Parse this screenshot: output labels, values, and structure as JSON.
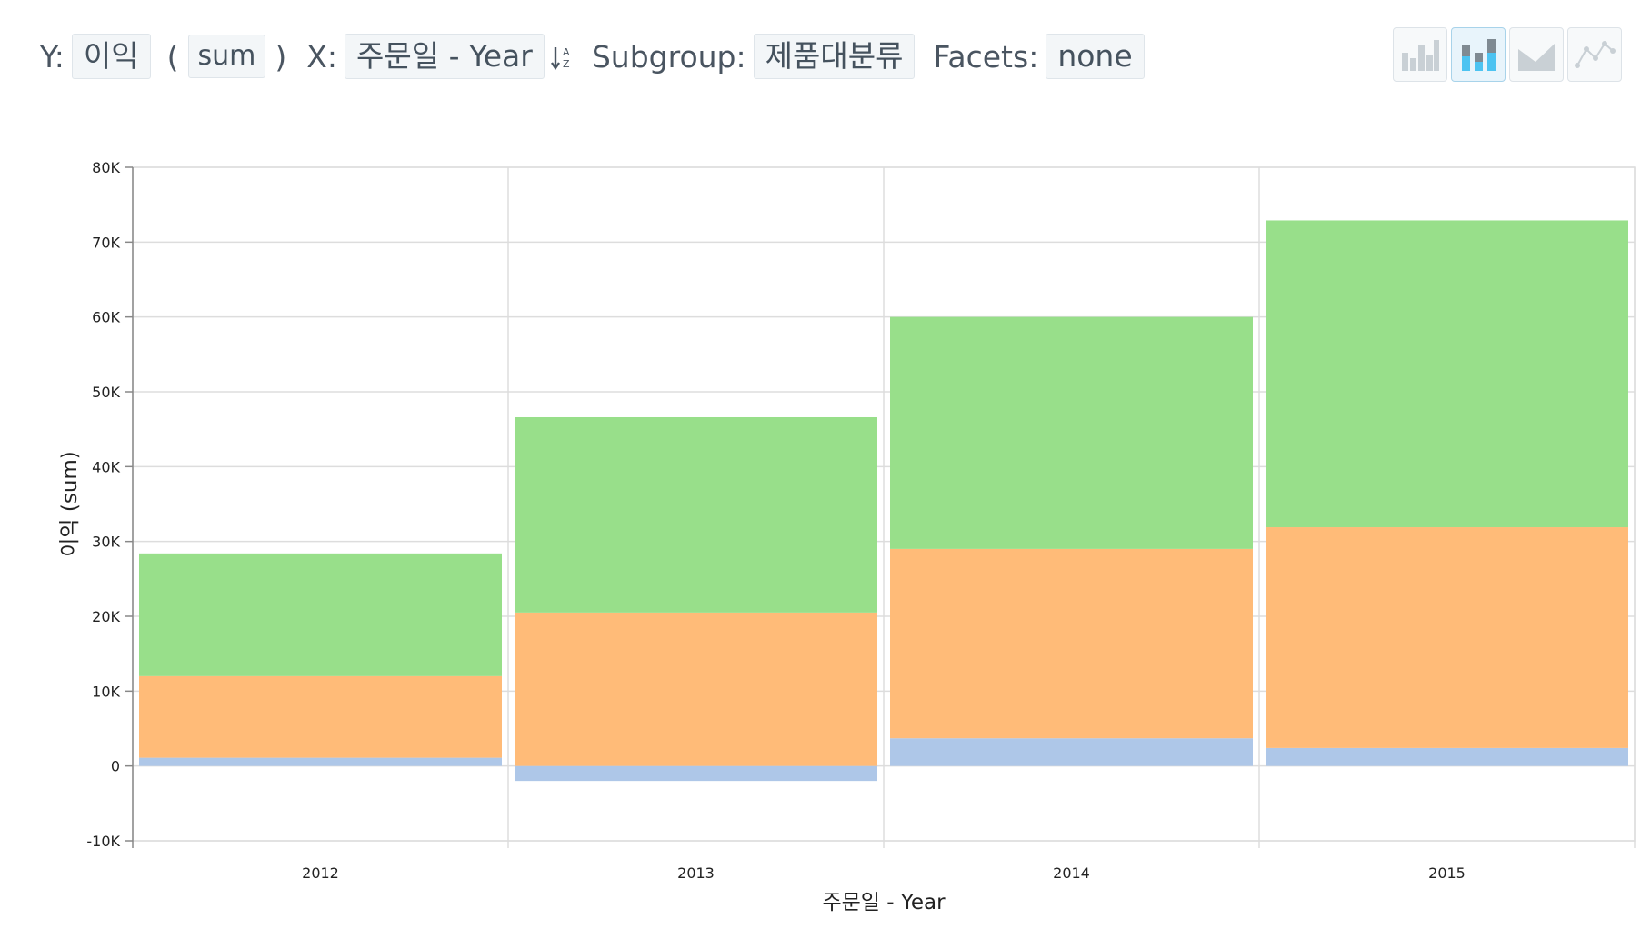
{
  "toolbar": {
    "y_label": "Y:",
    "y_value": "이익",
    "agg_open": "(",
    "agg_value": "sum",
    "agg_close": ")",
    "x_label": "X:",
    "x_value": "주문일 - Year",
    "sort_icon": "sort-alpha-icon",
    "subgroup_label": "Subgroup:",
    "subgroup_value": "제품대분류",
    "facets_label": "Facets:",
    "facets_value": "none"
  },
  "chart_types": [
    {
      "name": "bar-chart-icon",
      "active": false
    },
    {
      "name": "stacked-bar-chart-icon",
      "active": true
    },
    {
      "name": "area-chart-icon",
      "active": false
    },
    {
      "name": "line-chart-icon",
      "active": false
    }
  ],
  "colors": {
    "series_1": "#aec7e8",
    "series_2": "#ffbb78",
    "series_3": "#98df8a",
    "grid": "#dddddd"
  },
  "chart_data": {
    "type": "bar",
    "stacked": true,
    "categories": [
      "2012",
      "2013",
      "2014",
      "2015"
    ],
    "series": [
      {
        "values": [
          1100,
          -2000,
          3700,
          2400
        ]
      },
      {
        "values": [
          10900,
          20500,
          25300,
          29500
        ]
      },
      {
        "values": [
          16400,
          26100,
          31000,
          41000
        ]
      }
    ],
    "xlabel": "주문일 - Year",
    "ylabel": "이익 (sum)",
    "ylim": [
      -10000,
      80000
    ],
    "yticks": [
      -10000,
      0,
      10000,
      20000,
      30000,
      40000,
      50000,
      60000,
      70000,
      80000
    ],
    "ytick_labels": [
      "-10K",
      "0",
      "10K",
      "20K",
      "30K",
      "40K",
      "50K",
      "60K",
      "70K",
      "80K"
    ],
    "grid": true,
    "legend": "none"
  }
}
